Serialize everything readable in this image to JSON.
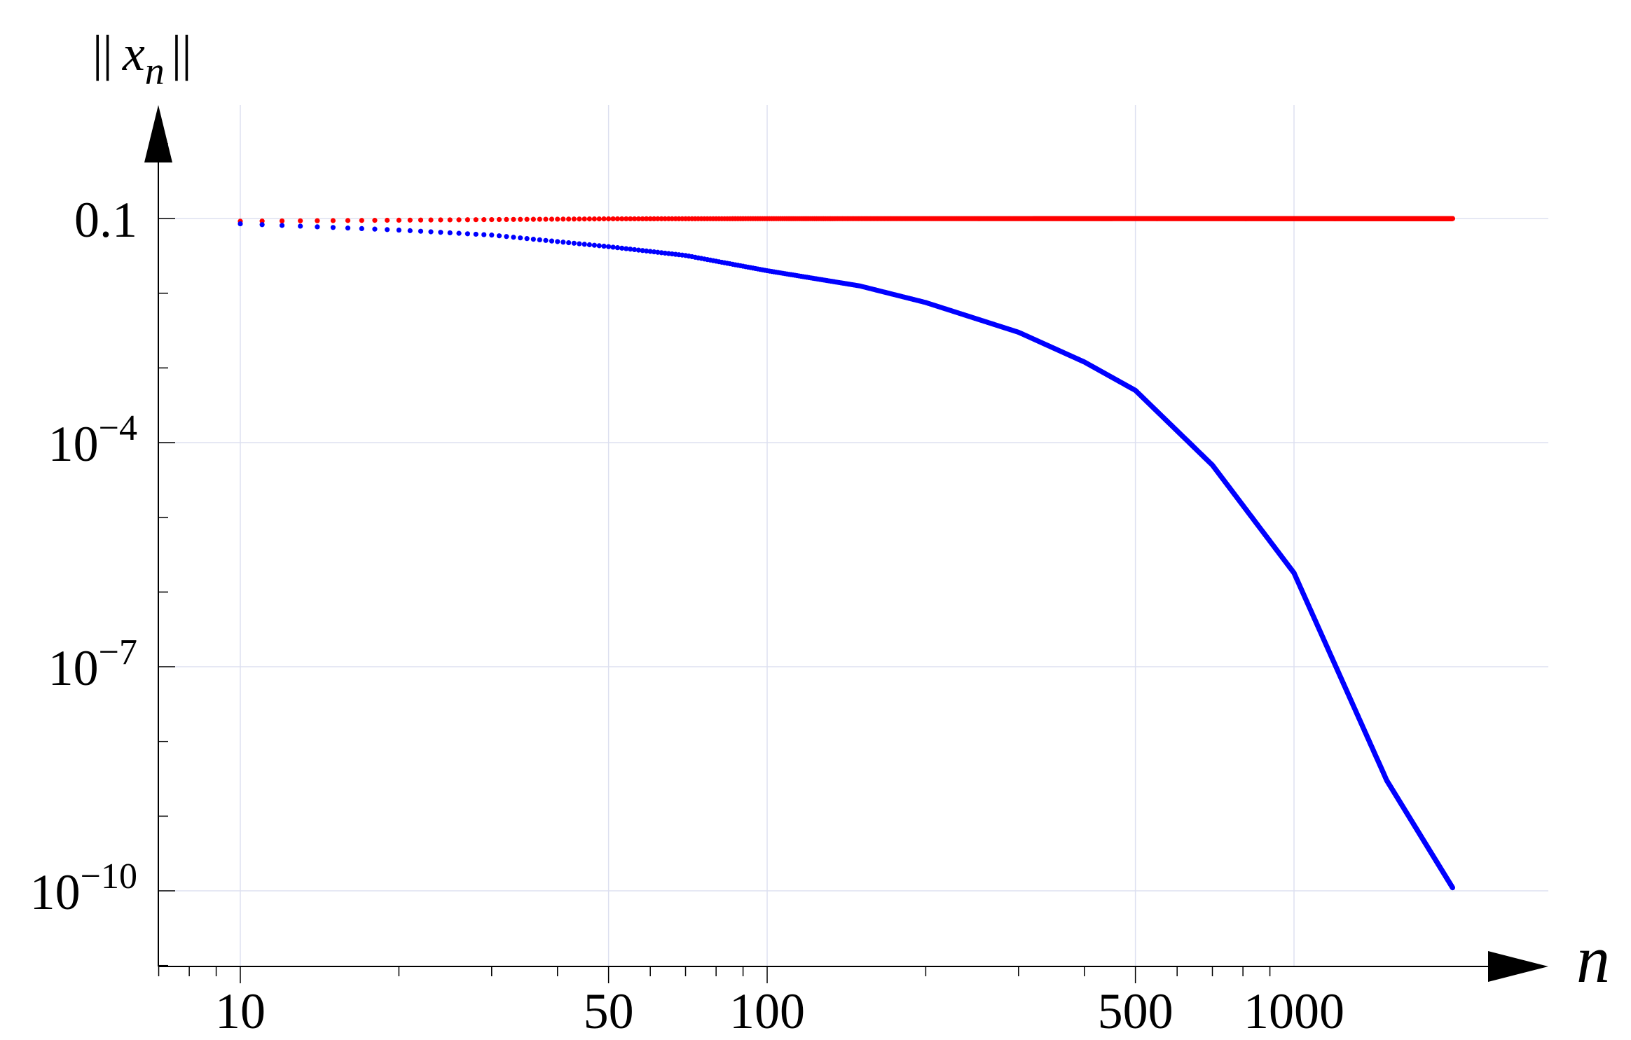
{
  "chart_data": {
    "type": "scatter",
    "title": "",
    "xlabel": "n",
    "ylabel_prefix": "||",
    "ylabel_var": "x",
    "ylabel_sub": "n",
    "ylabel_suffix": "||",
    "x_scale": "log",
    "y_scale": "log",
    "xlim": [
      6.5,
      2500
    ],
    "ylim": [
      1e-11,
      3
    ],
    "x_ticks": [
      10,
      50,
      100,
      500,
      1000
    ],
    "x_tick_labels": [
      "10",
      "50",
      "100",
      "500",
      "1000"
    ],
    "y_ticks": [
      0.1,
      0.0001,
      1e-07,
      1e-10
    ],
    "y_tick_labels": [
      {
        "base": "0.1",
        "exp": ""
      },
      {
        "base": "10",
        "exp": "−4"
      },
      {
        "base": "10",
        "exp": "−7"
      },
      {
        "base": "10",
        "exp": "−10"
      }
    ],
    "grid": true,
    "series": [
      {
        "color": "#ff0000",
        "x": [
          10,
          50,
          100,
          500,
          1000,
          2000
        ],
        "y": [
          0.092,
          0.099,
          0.0995,
          0.0997,
          0.0997,
          0.0997
        ]
      },
      {
        "color": "#0000ff",
        "x": [
          10,
          20,
          30,
          50,
          70,
          100,
          150,
          200,
          300,
          400,
          500,
          700,
          1000,
          1500,
          2000
        ],
        "y": [
          0.085,
          0.07,
          0.06,
          0.042,
          0.032,
          0.02,
          0.0125,
          0.0075,
          0.003,
          0.0012,
          0.0005,
          5e-05,
          1.8e-06,
          3e-09,
          1.1e-10
        ]
      }
    ]
  }
}
